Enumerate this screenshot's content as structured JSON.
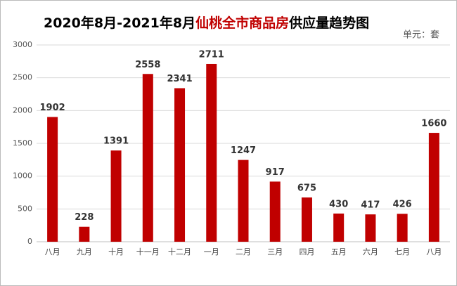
{
  "chart_data": {
    "type": "bar",
    "title": [
      "2020年8月-2021年8月",
      "仙桃全市商品房",
      "供应量趋势图"
    ],
    "title_colors": [
      "#000000",
      "#c00000",
      "#000000"
    ],
    "unit": "单元：套",
    "categories": [
      "八月",
      "九月",
      "十月",
      "十一月",
      "十二月",
      "一月",
      "二月",
      "三月",
      "四月",
      "五月",
      "六月",
      "七月",
      "八月"
    ],
    "values": [
      1902,
      228,
      1391,
      2558,
      2341,
      2711,
      1247,
      917,
      675,
      430,
      417,
      426,
      1660
    ],
    "color": "#c00000",
    "ylim": [
      0,
      3000
    ],
    "yticks": [
      0,
      500,
      1000,
      1500,
      2000,
      2500,
      3000
    ],
    "grid": true
  }
}
